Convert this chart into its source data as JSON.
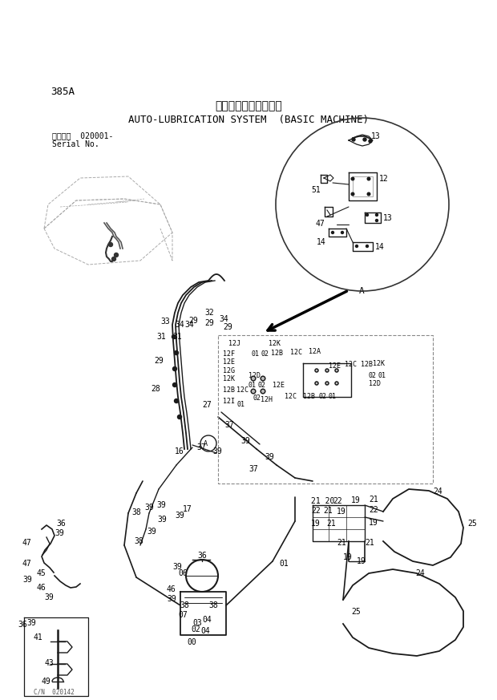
{
  "title_japanese": "自動給脂装置（本体）",
  "title_english": "AUTO-LUBRICATION SYSTEM  (BASIC MACHINE)",
  "part_number": "385A",
  "serial_label1": "適用号機  020001-",
  "serial_label2": "Serial No.",
  "background_color": "#ffffff",
  "text_color": "#000000",
  "line_color": "#1a1a1a",
  "gray_color": "#555555",
  "dashed_color": "#777777"
}
